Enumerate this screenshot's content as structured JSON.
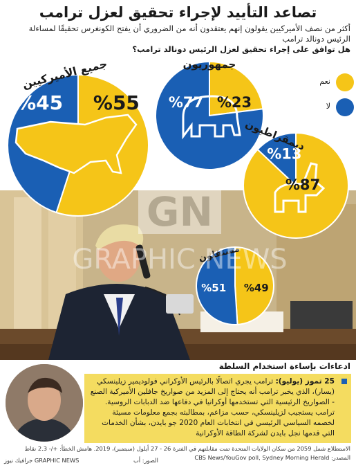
{
  "headline": "تصاعد التأييد لإجراء تحقيق لعزل ترامب",
  "subtitle": {
    "line1": "أكثر من نصف الأميركيين يقولون إنهم يعتقدون أنه من الضروري أن يفتح الكونغرس تحقيقًا لمساءلة الرئيس دونالد ترامب",
    "question": "هل توافق على إجراء تحقيق لعزل الرئيس دونالد ترامب؟"
  },
  "legend": [
    {
      "label": "نعم",
      "color": "#f5c518"
    },
    {
      "label": "لا",
      "color": "#1a5fb4"
    }
  ],
  "colors": {
    "yes": "#f5c518",
    "no": "#1a5fb4",
    "panel": "#f4dc60"
  },
  "chart_data": [
    {
      "type": "pie",
      "title": "جميع الأميركيين",
      "icon": "usa-map-icon",
      "slices": [
        {
          "label": "نعم",
          "value": 55,
          "text": "%55"
        },
        {
          "label": "لا",
          "value": 45,
          "text": "%45"
        }
      ]
    },
    {
      "type": "pie",
      "title": "جمهوريون",
      "icon": "elephant-icon",
      "slices": [
        {
          "label": "نعم",
          "value": 23,
          "text": "%23"
        },
        {
          "label": "لا",
          "value": 77,
          "text": "%77"
        }
      ]
    },
    {
      "type": "pie",
      "title": "ديمقراطيون",
      "icon": "donkey-icon",
      "slices": [
        {
          "label": "نعم",
          "value": 87,
          "text": "%87"
        },
        {
          "label": "لا",
          "value": 13,
          "text": "%13"
        }
      ]
    },
    {
      "type": "pie",
      "title": "مستقلون",
      "icon": "none",
      "slices": [
        {
          "label": "نعم",
          "value": 49,
          "text": "%49"
        },
        {
          "label": "لا",
          "value": 51,
          "text": "%51"
        }
      ]
    }
  ],
  "panel": {
    "title": "ادعاءات بإساءة استخدام السلطة",
    "date": "25 تموز (يوليو):",
    "text": "ترامب يجري اتصالًا بالرئيس الأوكراني فولوديمير زيلينسكي (يسار)، الذي يخبر ترامب أنه يحتاج إلى المزيد من صواريخ جافلين الأميركية الصنع - الصواريخ الرئيسية التي تستخدمها أوكرانيا في دفاعها ضد الدبابات الروسية. ترامب يستجيب لزيلينسكي، حسب مزاعم، بمطالبته بجمع معلومات مسيئة لخصمه السياسي الرئيسي في انتخابات العام 2020 جو بايدن، بشأن الخدمات التي قدمها نجل بايدن لشركة الطاقة الأوكرانية"
  },
  "footer": {
    "note": "الاستطلاع شمل 2059 من سكان الولايات المتحدة تمت مقابلتهم في الفترة 26 - 27 أيلول (سبتمبر)، 2019. هامش الخطأ: +/- 2.3 نقاط",
    "source": "المصدر: CBS News/YouGov poll, Sydney Morning Herald",
    "photo_credit": "الصور: أب",
    "agency": "GRAPHIC NEWS جرافيك نيوز"
  },
  "watermark": {
    "logo": "GN",
    "name": "GRAPHIC NEWS"
  }
}
